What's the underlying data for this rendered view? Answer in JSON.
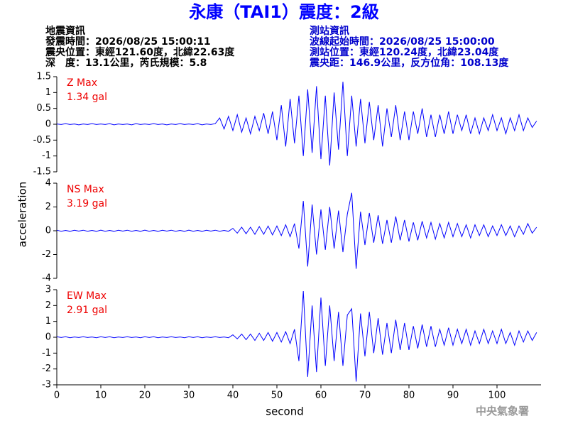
{
  "title": "永康（TAI1）震度：2級",
  "info_left": [
    "地震資訊",
    "發震時間：2026/08/25 15:00:11",
    "震央位置：東經121.60度，北緯22.63度",
    "深　度：13.1公里，芮氏規模：5.8"
  ],
  "info_right": [
    "測站資訊",
    "波線起始時間：2026/08/25 15:00:00",
    "測站位置：東經120.24度，北緯23.04度",
    "震央距：146.9公里，反方位角：108.13度"
  ],
  "y_label": "acceleration",
  "credit": "中央氣象署",
  "chart_data": [
    {
      "type": "line",
      "annotation": "Z Max",
      "max_label": "1.34 gal",
      "color": "#0000ff",
      "x": [
        0,
        1,
        2,
        3,
        4,
        5,
        6,
        7,
        8,
        9,
        10,
        11,
        12,
        13,
        14,
        15,
        16,
        17,
        18,
        19,
        20,
        21,
        22,
        23,
        24,
        25,
        26,
        27,
        28,
        29,
        30,
        31,
        32,
        33,
        34,
        35,
        36,
        37,
        38,
        39,
        40,
        41,
        42,
        43,
        44,
        45,
        46,
        47,
        48,
        49,
        50,
        51,
        52,
        53,
        54,
        55,
        56,
        57,
        58,
        59,
        60,
        61,
        62,
        63,
        64,
        65,
        66,
        67,
        68,
        69,
        70,
        71,
        72,
        73,
        74,
        75,
        76,
        77,
        78,
        79,
        80,
        81,
        82,
        83,
        84,
        85,
        86,
        87,
        88,
        89,
        90,
        91,
        92,
        93,
        94,
        95,
        96,
        97,
        98,
        99,
        100,
        101,
        102,
        103,
        104,
        105,
        106,
        107,
        108,
        109
      ],
      "values": [
        0.01,
        -0.01,
        0.02,
        -0.01,
        0.01,
        -0.02,
        0.01,
        -0.01,
        0.02,
        -0.01,
        0.01,
        -0.01,
        0.02,
        -0.02,
        0.01,
        -0.01,
        0.01,
        -0.02,
        0.02,
        -0.01,
        0.01,
        -0.01,
        0.02,
        -0.01,
        0.01,
        -0.02,
        0.01,
        -0.01,
        0.02,
        -0.01,
        0.01,
        -0.01,
        0.02,
        -0.02,
        0.01,
        -0.01,
        0.02,
        0.2,
        -0.15,
        0.25,
        -0.2,
        0.3,
        -0.25,
        0.2,
        -0.3,
        0.25,
        -0.2,
        0.35,
        -0.3,
        0.4,
        -0.5,
        0.6,
        -0.7,
        0.8,
        -0.6,
        0.9,
        -1.0,
        1.1,
        -0.9,
        1.2,
        -1.1,
        0.9,
        -1.3,
        1.0,
        -0.8,
        1.34,
        -1.0,
        0.9,
        -0.7,
        0.8,
        -0.6,
        0.7,
        -0.5,
        0.6,
        -0.7,
        0.5,
        -0.4,
        0.6,
        -0.5,
        0.4,
        -0.5,
        0.4,
        -0.3,
        0.5,
        -0.4,
        0.3,
        -0.4,
        0.3,
        -0.3,
        0.4,
        -0.3,
        0.3,
        -0.2,
        0.3,
        -0.3,
        0.2,
        -0.3,
        0.2,
        -0.2,
        0.3,
        -0.2,
        0.2,
        -0.3,
        0.2,
        -0.2,
        0.3,
        -0.2,
        0.2,
        -0.1,
        0.1
      ],
      "xlim": [
        0,
        110
      ],
      "ylim": [
        -1.5,
        1.5
      ],
      "yticks": [
        -1.5,
        -1,
        -0.5,
        0,
        0.5,
        1,
        1.5
      ]
    },
    {
      "type": "line",
      "annotation": "NS Max",
      "max_label": "3.19 gal",
      "color": "#0000ff",
      "x": [
        0,
        1,
        2,
        3,
        4,
        5,
        6,
        7,
        8,
        9,
        10,
        11,
        12,
        13,
        14,
        15,
        16,
        17,
        18,
        19,
        20,
        21,
        22,
        23,
        24,
        25,
        26,
        27,
        28,
        29,
        30,
        31,
        32,
        33,
        34,
        35,
        36,
        37,
        38,
        39,
        40,
        41,
        42,
        43,
        44,
        45,
        46,
        47,
        48,
        49,
        50,
        51,
        52,
        53,
        54,
        55,
        56,
        57,
        58,
        59,
        60,
        61,
        62,
        63,
        64,
        65,
        66,
        67,
        68,
        69,
        70,
        71,
        72,
        73,
        74,
        75,
        76,
        77,
        78,
        79,
        80,
        81,
        82,
        83,
        84,
        85,
        86,
        87,
        88,
        89,
        90,
        91,
        92,
        93,
        94,
        95,
        96,
        97,
        98,
        99,
        100,
        101,
        102,
        103,
        104,
        105,
        106,
        107,
        108,
        109
      ],
      "values": [
        0.05,
        -0.04,
        0.03,
        -0.05,
        0.04,
        -0.03,
        0.05,
        -0.04,
        0.03,
        -0.05,
        0.05,
        -0.04,
        0.03,
        -0.05,
        0.04,
        -0.03,
        0.05,
        -0.04,
        0.03,
        -0.05,
        0.05,
        -0.04,
        0.03,
        -0.05,
        0.04,
        -0.03,
        0.05,
        -0.04,
        0.03,
        -0.05,
        0.05,
        -0.04,
        0.03,
        -0.05,
        0.04,
        -0.03,
        0.05,
        -0.04,
        0.03,
        -0.05,
        0.2,
        -0.2,
        0.3,
        -0.25,
        0.3,
        -0.3,
        0.35,
        -0.3,
        0.4,
        -0.35,
        0.4,
        -0.4,
        0.5,
        -0.5,
        0.6,
        -1.5,
        2.5,
        -3.0,
        2.2,
        -2.0,
        1.8,
        -1.6,
        2.0,
        -1.5,
        1.7,
        -1.8,
        1.4,
        3.19,
        -3.2,
        1.6,
        -1.2,
        1.5,
        -1.0,
        1.3,
        -1.1,
        0.9,
        -1.0,
        1.2,
        -0.8,
        0.9,
        -0.9,
        0.7,
        -0.8,
        0.8,
        -0.6,
        0.7,
        -0.7,
        0.6,
        -0.6,
        0.7,
        -0.5,
        0.6,
        -0.5,
        0.5,
        -0.6,
        0.5,
        -0.4,
        0.5,
        -0.5,
        0.4,
        -0.4,
        0.5,
        -0.4,
        0.4,
        -0.5,
        0.4,
        -0.3,
        0.6,
        -0.2,
        0.3
      ],
      "xlim": [
        0,
        110
      ],
      "ylim": [
        -4,
        4
      ],
      "yticks": [
        -4,
        -2,
        0,
        2,
        4
      ]
    },
    {
      "type": "line",
      "annotation": "EW Max",
      "max_label": "2.91 gal",
      "color": "#0000ff",
      "x": [
        0,
        1,
        2,
        3,
        4,
        5,
        6,
        7,
        8,
        9,
        10,
        11,
        12,
        13,
        14,
        15,
        16,
        17,
        18,
        19,
        20,
        21,
        22,
        23,
        24,
        25,
        26,
        27,
        28,
        29,
        30,
        31,
        32,
        33,
        34,
        35,
        36,
        37,
        38,
        39,
        40,
        41,
        42,
        43,
        44,
        45,
        46,
        47,
        48,
        49,
        50,
        51,
        52,
        53,
        54,
        55,
        56,
        57,
        58,
        59,
        60,
        61,
        62,
        63,
        64,
        65,
        66,
        67,
        68,
        69,
        70,
        71,
        72,
        73,
        74,
        75,
        76,
        77,
        78,
        79,
        80,
        81,
        82,
        83,
        84,
        85,
        86,
        87,
        88,
        89,
        90,
        91,
        92,
        93,
        94,
        95,
        96,
        97,
        98,
        99,
        100,
        101,
        102,
        103,
        104,
        105,
        106,
        107,
        108,
        109
      ],
      "values": [
        0.03,
        -0.02,
        0.03,
        -0.03,
        0.02,
        -0.02,
        0.03,
        -0.02,
        0.02,
        -0.03,
        0.03,
        -0.02,
        0.03,
        -0.03,
        0.02,
        -0.02,
        0.03,
        -0.02,
        0.02,
        -0.03,
        0.03,
        -0.02,
        0.03,
        -0.03,
        0.02,
        -0.02,
        0.03,
        -0.02,
        0.02,
        -0.03,
        0.03,
        -0.02,
        0.03,
        -0.03,
        0.02,
        -0.02,
        0.03,
        -0.02,
        0.02,
        -0.03,
        0.15,
        -0.1,
        0.2,
        -0.15,
        0.2,
        -0.2,
        0.25,
        -0.2,
        0.3,
        -0.25,
        0.3,
        -0.3,
        0.35,
        -0.4,
        0.5,
        -1.5,
        2.91,
        -2.5,
        2.0,
        -2.2,
        2.5,
        -1.8,
        2.0,
        -1.5,
        1.6,
        -1.8,
        1.4,
        1.8,
        -2.8,
        1.5,
        -1.2,
        1.6,
        -1.0,
        1.2,
        -1.1,
        0.9,
        -1.0,
        1.1,
        -0.8,
        0.9,
        -0.8,
        0.7,
        -0.7,
        0.8,
        -0.6,
        0.7,
        -0.6,
        0.5,
        -0.5,
        0.6,
        -0.5,
        0.5,
        -0.4,
        0.5,
        -0.5,
        0.4,
        -0.4,
        0.5,
        -0.4,
        0.4,
        -0.4,
        0.5,
        -0.4,
        0.3,
        -0.5,
        0.4,
        -0.3,
        0.4,
        -0.2,
        0.3
      ],
      "xlim": [
        0,
        110
      ],
      "ylim": [
        -3,
        3
      ],
      "yticks": [
        -3,
        -2,
        -1,
        0,
        1,
        2,
        3
      ],
      "xticks": [
        0,
        10,
        20,
        30,
        40,
        50,
        60,
        70,
        80,
        90,
        100
      ],
      "x_label": "second"
    }
  ]
}
